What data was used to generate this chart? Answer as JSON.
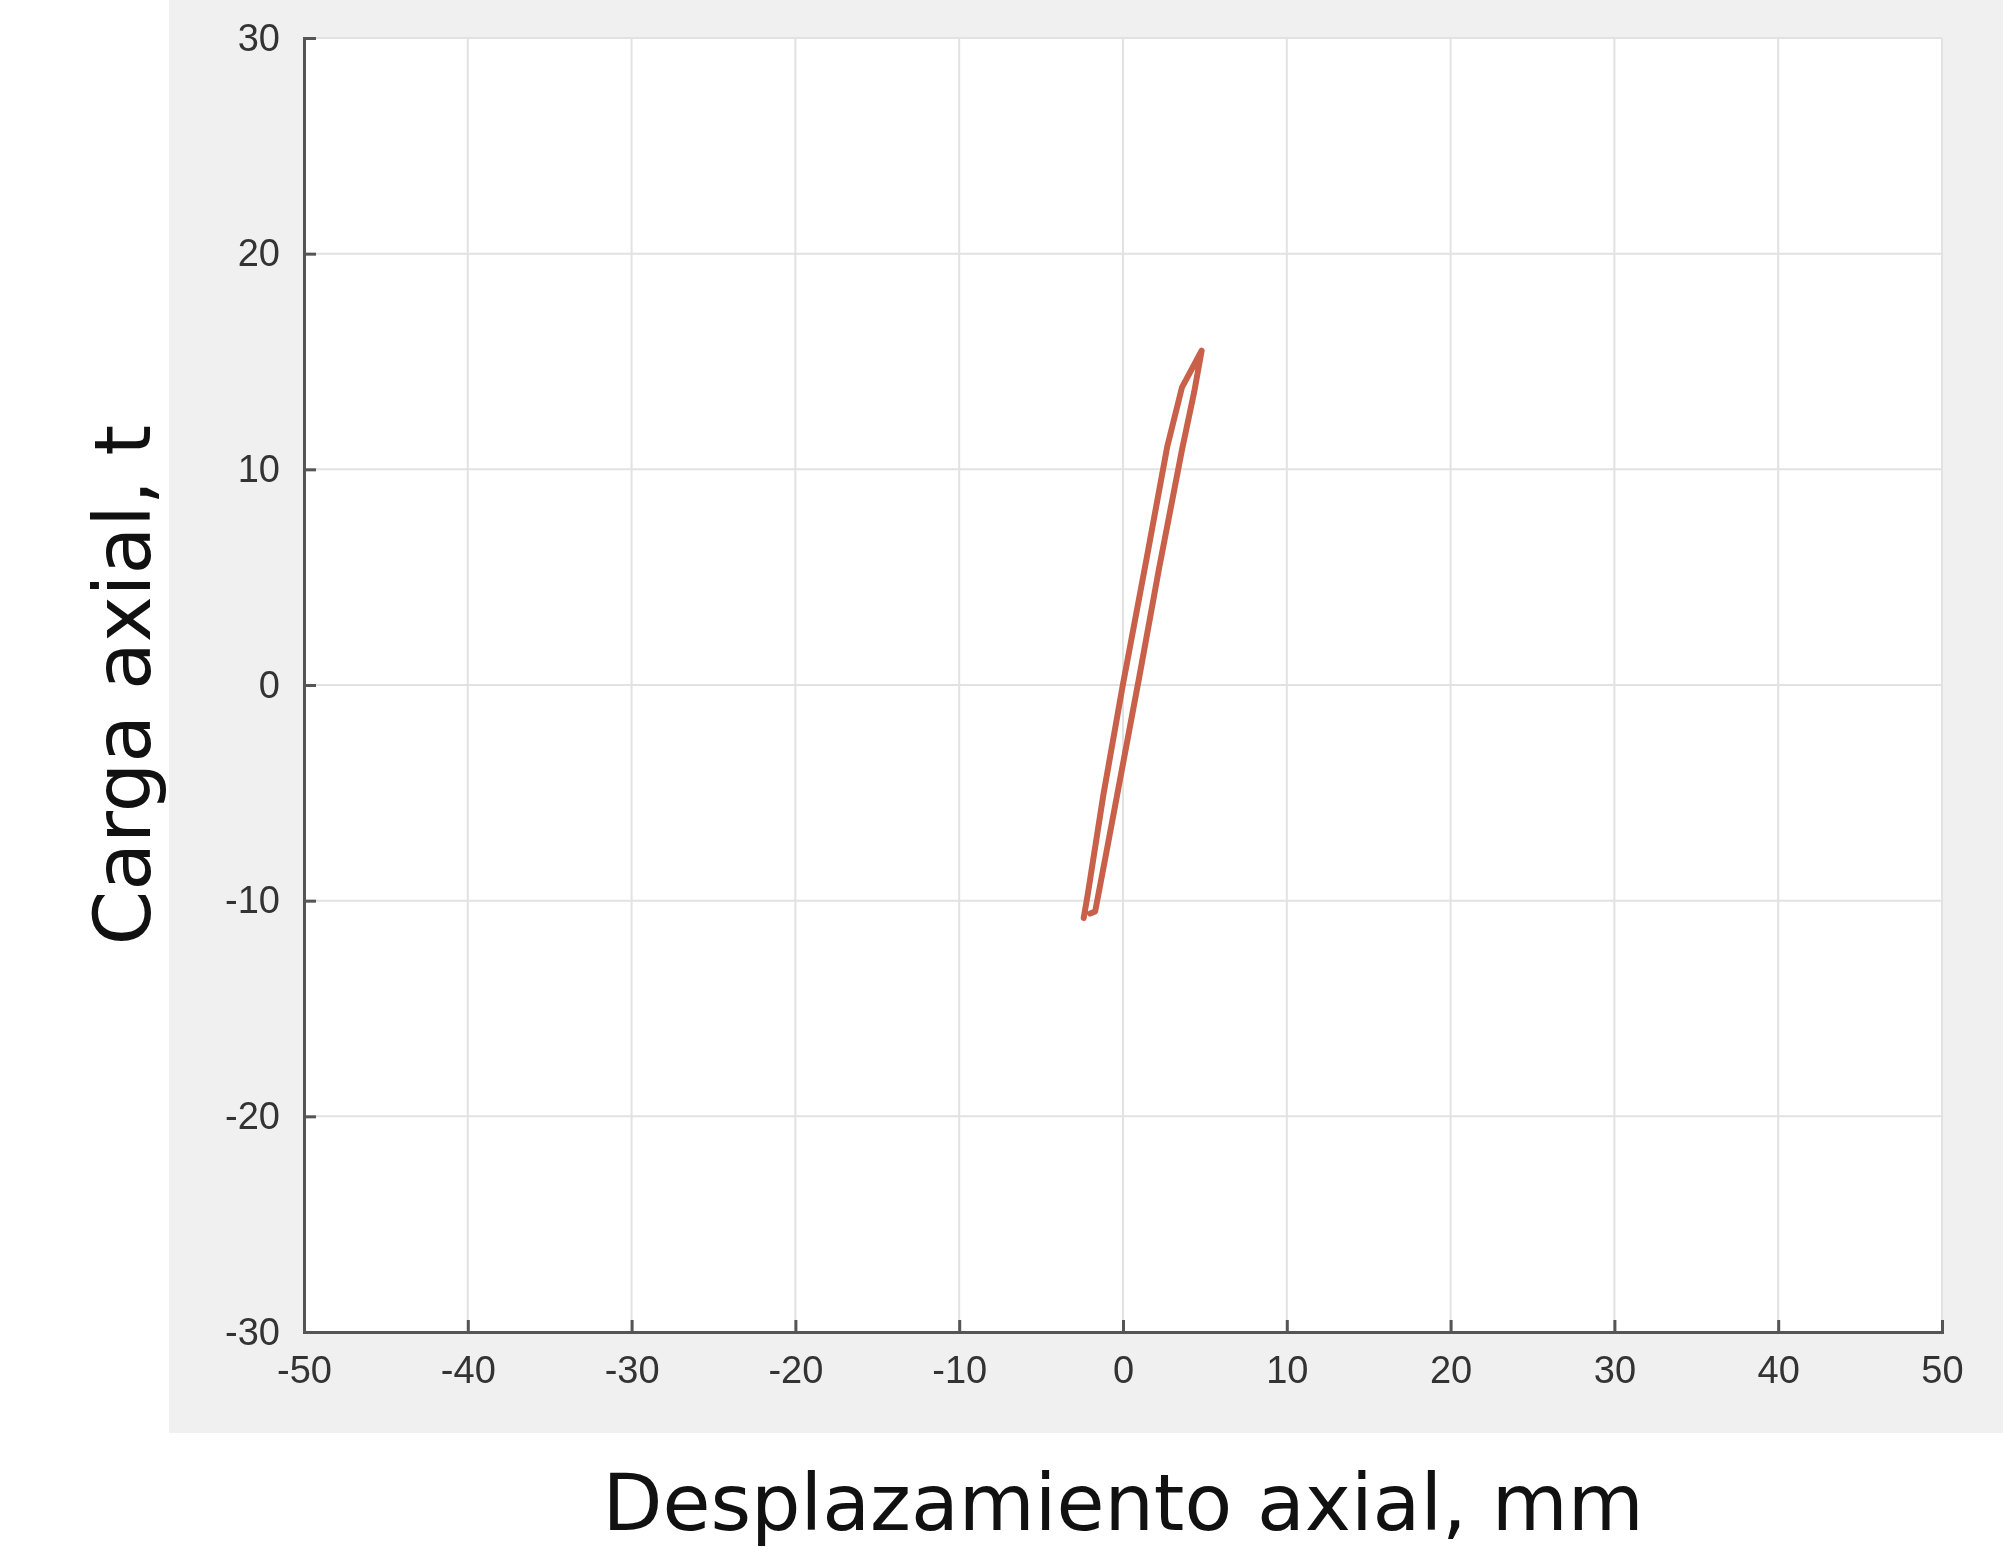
{
  "chart_data": {
    "type": "line",
    "xlabel": "Desplazamiento axial, mm",
    "ylabel": "Carga axial, t",
    "xlim": [
      -50,
      50
    ],
    "xticks": [
      -50,
      -40,
      -30,
      -20,
      -10,
      0,
      10,
      20,
      30,
      40,
      50
    ],
    "ylim": [
      -30,
      30
    ],
    "yticks": [
      -30,
      -20,
      -10,
      0,
      10,
      20,
      30
    ],
    "grid": true,
    "marker": "none",
    "line_style": "solid",
    "series": [
      {
        "color": "#c8604a",
        "x": [
          -2.4,
          -2.15,
          -1.2,
          0,
          1.45,
          2.7,
          3.6,
          4.8,
          4.35,
          3.6,
          2.2,
          1.0,
          -0.95,
          -1.7,
          -2.0
        ],
        "values": [
          -10.8,
          -9.7,
          -5.1,
          0.05,
          5.9,
          11.05,
          13.8,
          15.5,
          13.6,
          10.9,
          5.4,
          0.4,
          -7.5,
          -10.5,
          -10.6
        ]
      }
    ]
  }
}
